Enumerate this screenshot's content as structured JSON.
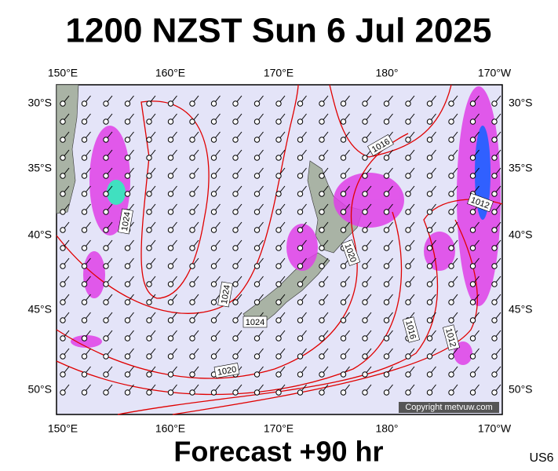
{
  "header": {
    "title": "1200 NZST Sun 6 Jul 2025"
  },
  "map": {
    "lon_labels": [
      "150°E",
      "160°E",
      "170°E",
      "180°",
      "170°W"
    ],
    "lat_labels": [
      "30°S",
      "35°S",
      "40°S",
      "45°S",
      "50°S"
    ],
    "isobar_labels": [
      "1016",
      "1012",
      "1024",
      "1020",
      "1024",
      "1024",
      "1016",
      "1012",
      "1020"
    ],
    "copyright": "Copyright metvuw.com"
  },
  "footer": {
    "forecast": "Forecast +90 hr",
    "code": "US6"
  }
}
